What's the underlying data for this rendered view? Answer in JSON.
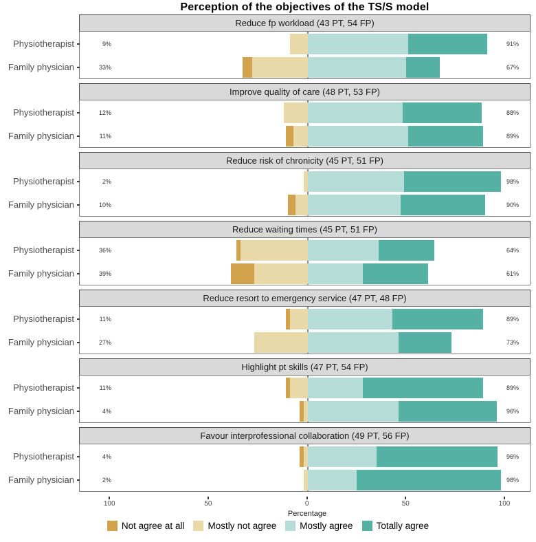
{
  "title": "Perception of the objectives of the TS/S model",
  "colors": {
    "not_agree_at_all": "#d2a24c",
    "mostly_not_agree": "#e9d9a8",
    "mostly_agree": "#b6dcd7",
    "totally_agree": "#56b1a5",
    "header_bg": "#d9d9d9",
    "zero_line": "#8a8a8a"
  },
  "axis": {
    "tick_labels": [
      "100",
      "50",
      "0",
      "50",
      "100"
    ],
    "tick_values": [
      -100,
      -50,
      0,
      50,
      100
    ],
    "xlabel": "Percentage"
  },
  "legend": [
    {
      "label": "Not agree at all",
      "color_key": "not_agree_at_all"
    },
    {
      "label": "Mostly not agree",
      "color_key": "mostly_not_agree"
    },
    {
      "label": "Mostly agree",
      "color_key": "mostly_agree"
    },
    {
      "label": "Totally agree",
      "color_key": "totally_agree"
    }
  ],
  "chart_data": {
    "type": "bar",
    "subtype": "diverging_stacked_likert",
    "title": "Perception of the objectives of the TS/S model",
    "xlabel": "Percentage",
    "xlim": [
      -115,
      115
    ],
    "categories": [
      "Not agree at all",
      "Mostly not agree",
      "Mostly agree",
      "Totally agree"
    ],
    "panels": [
      {
        "title": "Reduce fp workload (43 PT, 54 FP)",
        "rows": [
          {
            "group": "Physiotherapist",
            "left_total": "9%",
            "right_total": "91%",
            "values": [
              0,
              9,
              51,
              40
            ]
          },
          {
            "group": "Family physician",
            "left_total": "33%",
            "right_total": "67%",
            "values": [
              5,
              28,
              50,
              17
            ]
          }
        ]
      },
      {
        "title": "Improve quality of care (48 PT, 53 FP)",
        "rows": [
          {
            "group": "Physiotherapist",
            "left_total": "12%",
            "right_total": "88%",
            "values": [
              0,
              12,
              48,
              40
            ]
          },
          {
            "group": "Family physician",
            "left_total": "11%",
            "right_total": "89%",
            "values": [
              4,
              7,
              51,
              38
            ]
          }
        ]
      },
      {
        "title": "Reduce risk of chronicity (45 PT, 51 FP)",
        "rows": [
          {
            "group": "Physiotherapist",
            "left_total": "2%",
            "right_total": "98%",
            "values": [
              0,
              2,
              49,
              49
            ]
          },
          {
            "group": "Family physician",
            "left_total": "10%",
            "right_total": "90%",
            "values": [
              4,
              6,
              47,
              43
            ]
          }
        ]
      },
      {
        "title": "Reduce waiting times (45 PT, 51 FP)",
        "rows": [
          {
            "group": "Physiotherapist",
            "left_total": "36%",
            "right_total": "64%",
            "values": [
              2,
              34,
              36,
              28
            ]
          },
          {
            "group": "Family physician",
            "left_total": "39%",
            "right_total": "61%",
            "values": [
              12,
              27,
              28,
              33
            ]
          }
        ]
      },
      {
        "title": "Reduce resort to emergency service (47 PT, 48 FP)",
        "rows": [
          {
            "group": "Physiotherapist",
            "left_total": "11%",
            "right_total": "89%",
            "values": [
              2,
              9,
              43,
              46
            ]
          },
          {
            "group": "Family physician",
            "left_total": "27%",
            "right_total": "73%",
            "values": [
              0,
              27,
              46,
              27
            ]
          }
        ]
      },
      {
        "title": "Highlight pt skills (47 PT, 54 FP)",
        "rows": [
          {
            "group": "Physiotherapist",
            "left_total": "11%",
            "right_total": "89%",
            "values": [
              2,
              9,
              28,
              61
            ]
          },
          {
            "group": "Family physician",
            "left_total": "4%",
            "right_total": "96%",
            "values": [
              2,
              2,
              46,
              50
            ]
          }
        ]
      },
      {
        "title": "Favour interprofessional collaboration (49 PT, 56 FP)",
        "rows": [
          {
            "group": "Physiotherapist",
            "left_total": "4%",
            "right_total": "96%",
            "values": [
              2,
              2,
              35,
              61
            ]
          },
          {
            "group": "Family physician",
            "left_total": "2%",
            "right_total": "98%",
            "values": [
              0,
              2,
              25,
              73
            ]
          }
        ]
      }
    ]
  }
}
